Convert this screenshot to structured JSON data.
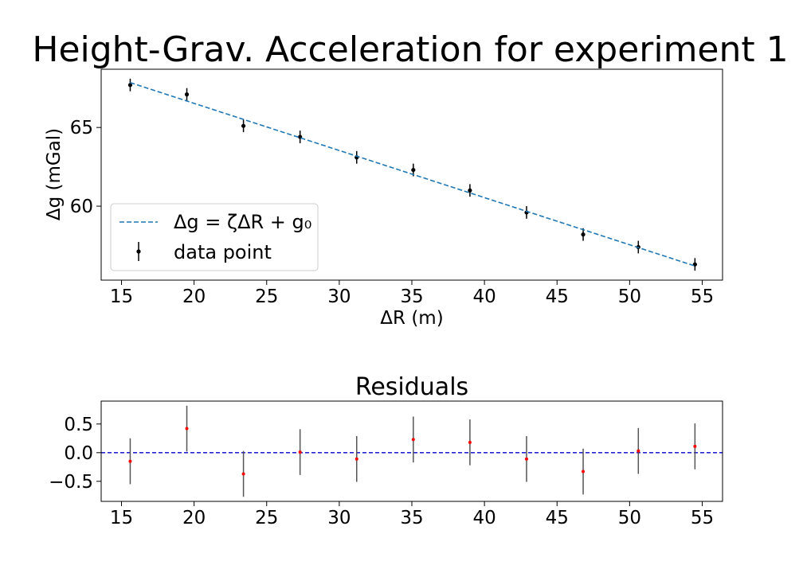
{
  "chart_data": [
    {
      "type": "scatter",
      "title": "Height-Grav. Acceleration for experiment 1",
      "xlabel": "ΔR (m)",
      "ylabel": "Δg (mGal)",
      "xlim": [
        13.6,
        56.4
      ],
      "ylim": [
        55.3,
        68.7
      ],
      "xticks": [
        15,
        20,
        25,
        30,
        35,
        40,
        45,
        50,
        55
      ],
      "yticks": [
        60,
        65
      ],
      "grid": false,
      "legend_position": "lower-left",
      "series": [
        {
          "name": "data point",
          "kind": "errorbar",
          "color": "#000000",
          "x": [
            15.6,
            19.5,
            23.4,
            27.3,
            31.2,
            35.1,
            39.0,
            42.9,
            46.8,
            50.6,
            54.5
          ],
          "y": [
            67.7,
            67.1,
            65.1,
            64.4,
            63.1,
            62.3,
            61.0,
            59.6,
            58.2,
            57.4,
            56.3
          ],
          "yerr": [
            0.4,
            0.4,
            0.4,
            0.4,
            0.4,
            0.4,
            0.4,
            0.4,
            0.4,
            0.4,
            0.4
          ]
        },
        {
          "name": "Δg = ζΔR + g₀",
          "kind": "fit-line",
          "color": "#1f77b4",
          "dash": true,
          "x": [
            15.6,
            54.5
          ],
          "y": [
            67.85,
            56.2
          ]
        }
      ]
    },
    {
      "type": "scatter",
      "title": "Residuals",
      "xlabel": "",
      "ylabel": "",
      "xlim": [
        13.6,
        56.4
      ],
      "ylim": [
        -0.85,
        0.9
      ],
      "xticks": [
        15,
        20,
        25,
        30,
        35,
        40,
        45,
        50,
        55
      ],
      "yticks": [
        -0.5,
        0.0,
        0.5
      ],
      "ytick_labels": [
        "−0.5",
        "0.0",
        "0.5"
      ],
      "grid": false,
      "zero_line_color": "#0000cc",
      "series": [
        {
          "kind": "errorbar",
          "color": "#ff0000",
          "errcolor": "#555555",
          "x": [
            15.6,
            19.5,
            23.4,
            27.3,
            31.2,
            35.1,
            39.0,
            42.9,
            46.8,
            50.6,
            54.5
          ],
          "y": [
            -0.15,
            0.42,
            -0.37,
            0.01,
            -0.11,
            0.23,
            0.18,
            -0.11,
            -0.33,
            0.03,
            0.11
          ],
          "yerr": [
            0.4,
            0.4,
            0.4,
            0.4,
            0.4,
            0.4,
            0.4,
            0.4,
            0.4,
            0.4,
            0.4
          ]
        }
      ]
    }
  ]
}
